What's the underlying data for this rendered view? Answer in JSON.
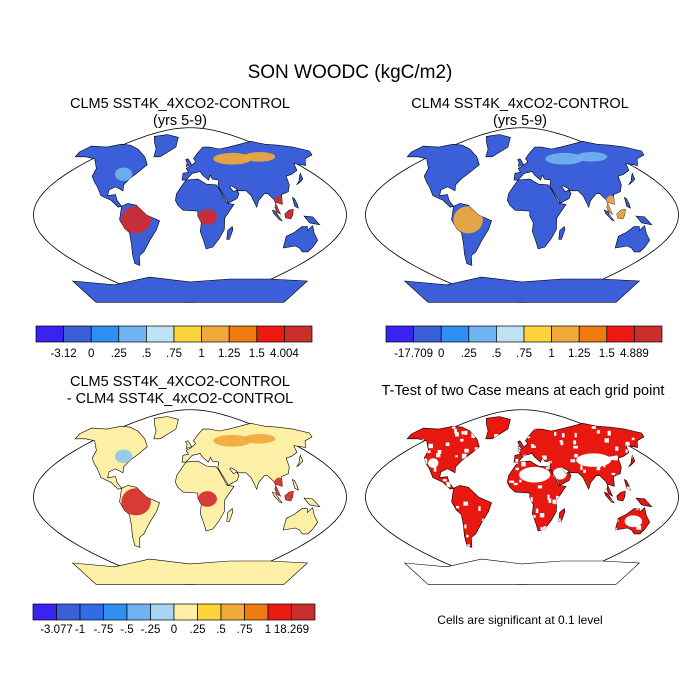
{
  "figure": {
    "title": "SON WOODC (kgC/m2)"
  },
  "panels": [
    {
      "id": "p1",
      "title_line1": "CLM5 SST4K_4XCO2-CONTROL",
      "title_line2": "(yrs 5-9)",
      "background_fill": "#3b5fd9",
      "hotspots": [
        {
          "region": "amazon",
          "color": "#d22b2b"
        },
        {
          "region": "central-africa",
          "color": "#d22b2b"
        },
        {
          "region": "southeast-asia",
          "color": "#d22b2b"
        },
        {
          "region": "boreal-eurasia",
          "color": "#f2a93b"
        },
        {
          "region": "north-america-east",
          "color": "#6fb3f0"
        }
      ]
    },
    {
      "id": "p2",
      "title_line1": "CLM4 SST4K_4xCO2-CONTROL",
      "title_line2": "(yrs 5-9)",
      "background_fill": "#3b5fd9",
      "hotspots": [
        {
          "region": "amazon",
          "color": "#f2a93b"
        },
        {
          "region": "southeast-asia",
          "color": "#f2a93b"
        },
        {
          "region": "boreal-eurasia",
          "color": "#6fb3f0"
        }
      ]
    },
    {
      "id": "p3",
      "title_line1": "CLM5 SST4K_4XCO2-CONTROL",
      "title_line2": "- CLM4 SST4K_4xCO2-CONTROL",
      "background_fill": "#fdf0a6",
      "hotspots": [
        {
          "region": "amazon",
          "color": "#d22b2b"
        },
        {
          "region": "central-africa",
          "color": "#d22b2b"
        },
        {
          "region": "southeast-asia",
          "color": "#d22b2b"
        },
        {
          "region": "boreal-eurasia",
          "color": "#f2a93b"
        },
        {
          "region": "north-america-east",
          "color": "#8fc8f0"
        }
      ]
    },
    {
      "id": "p4",
      "title_line1": "T-Test of two Case means at each grid point",
      "title_line2": "",
      "background_fill": "#e8170f",
      "note": "Cells are significant at 0.1 level"
    }
  ],
  "colorbars": [
    {
      "id": "cb1",
      "colors": [
        "#3a23f0",
        "#3b5fd9",
        "#2f8ff0",
        "#6fb3f0",
        "#bfe1f5",
        "#fdd33b",
        "#f2a93b",
        "#f07a12",
        "#ec1a12",
        "#c9302c"
      ],
      "labels": [
        "-3.12",
        "0",
        ".25",
        ".5",
        ".75",
        "1",
        "1.25",
        "1.5",
        "4.004"
      ]
    },
    {
      "id": "cb2",
      "colors": [
        "#3a23f0",
        "#3b5fd9",
        "#2f8ff0",
        "#6fb3f0",
        "#bfe1f5",
        "#fdd33b",
        "#f2a93b",
        "#f07a12",
        "#ec1a12",
        "#c9302c"
      ],
      "labels": [
        "-17.709",
        "0",
        ".25",
        ".5",
        ".75",
        "1",
        "1.25",
        "1.5",
        "4.889"
      ]
    },
    {
      "id": "cb3",
      "colors": [
        "#3a23f0",
        "#3b5fd9",
        "#2f6ce8",
        "#2f8ff0",
        "#6fb3f0",
        "#a8d5f4",
        "#fdf0a6",
        "#fdd33b",
        "#f2a93b",
        "#f07a12",
        "#ec1a12",
        "#c9302c"
      ],
      "labels": [
        "-3.077",
        "-1",
        "-.75",
        "-.5",
        "-.25",
        "0",
        ".25",
        ".5",
        ".75",
        "1",
        "18.269"
      ]
    }
  ]
}
